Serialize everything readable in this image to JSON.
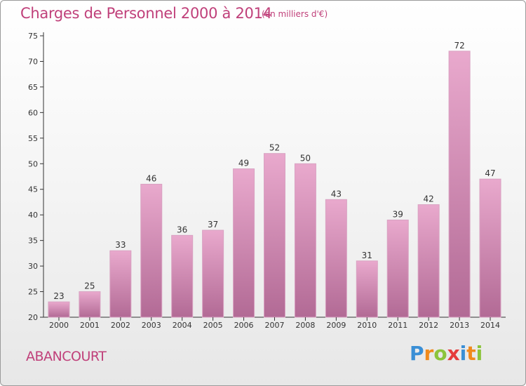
{
  "chart_data": {
    "type": "bar",
    "title": "Charges de Personnel 2000 à 2014",
    "subtitle": "(en milliers d'€)",
    "categories": [
      "2000",
      "2001",
      "2002",
      "2003",
      "2004",
      "2005",
      "2006",
      "2007",
      "2008",
      "2009",
      "2010",
      "2011",
      "2012",
      "2013",
      "2014"
    ],
    "values": [
      23,
      25,
      33,
      46,
      36,
      37,
      49,
      52,
      50,
      43,
      31,
      39,
      42,
      72,
      47
    ],
    "ylim": [
      20,
      75
    ],
    "yticks": [
      20,
      25,
      30,
      35,
      40,
      45,
      50,
      55,
      60,
      65,
      70,
      75
    ],
    "grid": false,
    "bar_color": "#d98cb5"
  },
  "commune": "ABANCOURT",
  "logo": {
    "letters": [
      "P",
      "r",
      "o",
      "x",
      "i",
      "t",
      "i"
    ],
    "colors": [
      "#3a8fd6",
      "#f08a1c",
      "#8cc43c",
      "#e53c3c",
      "#3a8fd6",
      "#f08a1c",
      "#8cc43c"
    ]
  }
}
